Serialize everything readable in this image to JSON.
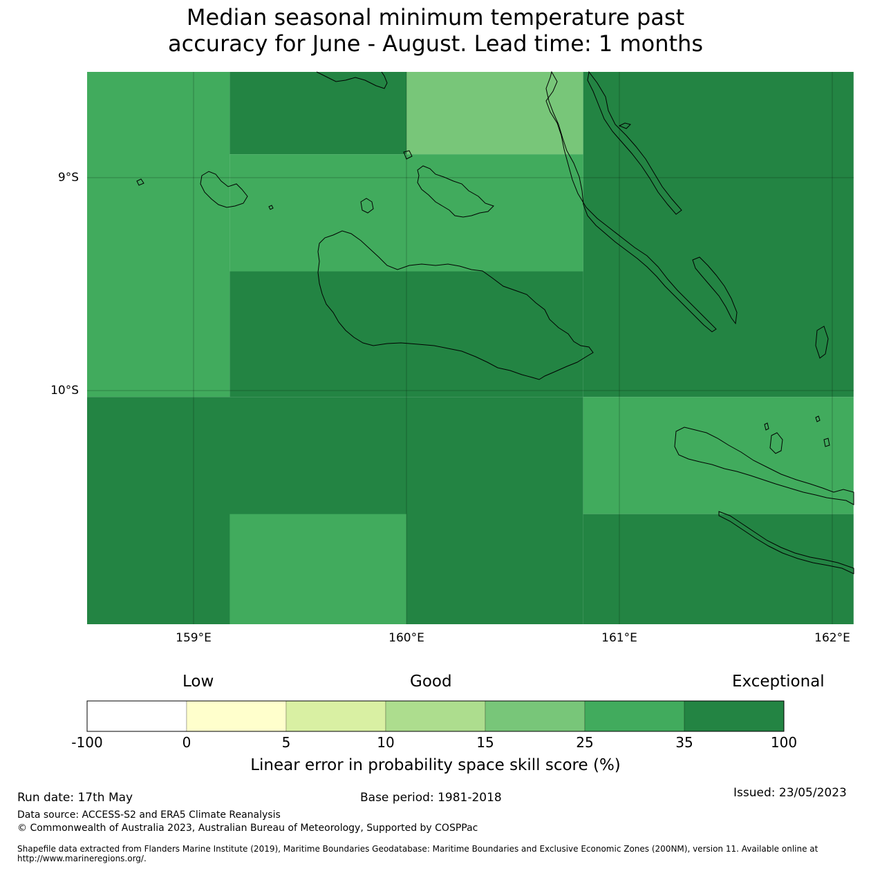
{
  "title": {
    "line1": "Median seasonal minimum temperature past",
    "line2": "accuracy for June - August. Lead time: 1 months"
  },
  "map": {
    "lat_labels": [
      "9°S",
      "10°S"
    ],
    "lon_labels": [
      "159°E",
      "160°E",
      "161°E",
      "162°E"
    ],
    "cells": [
      {
        "lon": [
          158.5,
          159.17
        ],
        "lat": [
          -8.5,
          -10.03
        ],
        "category": "25-35"
      },
      {
        "lon": [
          159.17,
          160.0
        ],
        "lat": [
          -8.5,
          -8.89
        ],
        "category": "35-100"
      },
      {
        "lon": [
          160.0,
          160.83
        ],
        "lat": [
          -8.5,
          -8.89
        ],
        "category": "15-25"
      },
      {
        "lon": [
          160.83,
          162.1
        ],
        "lat": [
          -8.5,
          -10.03
        ],
        "category": "35-100"
      },
      {
        "lon": [
          159.17,
          160.83
        ],
        "lat": [
          -8.89,
          -9.44
        ],
        "category": "25-35"
      },
      {
        "lon": [
          159.17,
          160.83
        ],
        "lat": [
          -9.44,
          -10.03
        ],
        "category": "35-100"
      },
      {
        "lon": [
          158.5,
          160.83
        ],
        "lat": [
          -10.03,
          -11.1
        ],
        "category": "35-100"
      },
      {
        "lon": [
          160.83,
          162.1
        ],
        "lat": [
          -10.03,
          -10.58
        ],
        "category": "25-35"
      },
      {
        "lon": [
          159.17,
          160.0
        ],
        "lat": [
          -10.58,
          -11.1
        ],
        "category": "25-35"
      },
      {
        "lon": [
          160.83,
          162.1
        ],
        "lat": [
          -10.58,
          -11.1
        ],
        "category": "35-100"
      }
    ]
  },
  "colorbar": {
    "categories": [
      "Low",
      "Good",
      "Exceptional"
    ],
    "ticks": [
      "-100",
      "0",
      "5",
      "10",
      "15",
      "25",
      "35",
      "100"
    ],
    "colors": [
      "#ffffff",
      "#ffffcc",
      "#d9f0a3",
      "#addd8e",
      "#78c679",
      "#41ab5d",
      "#238443"
    ],
    "label": "Linear error in probability space skill score (%)"
  },
  "footer": {
    "run_date": "Run date: 17th May",
    "base_period": "Base period: 1981-2018",
    "issued": "Issued: 23/05/2023",
    "data_source": "Data source: ACCESS-S2 and ERA5 Climate Reanalysis",
    "copyright": "© Commonwealth of Australia 2023, Australian Bureau of Meteorology, Supported by COSPPac",
    "shapefile": "Shapefile data extracted from Flanders Marine Institute (2019), Maritime Boundaries Geodatabase: Maritime Boundaries and Exclusive Economic Zones (200NM), version 11. Available online at http://www.marineregions.org/."
  }
}
